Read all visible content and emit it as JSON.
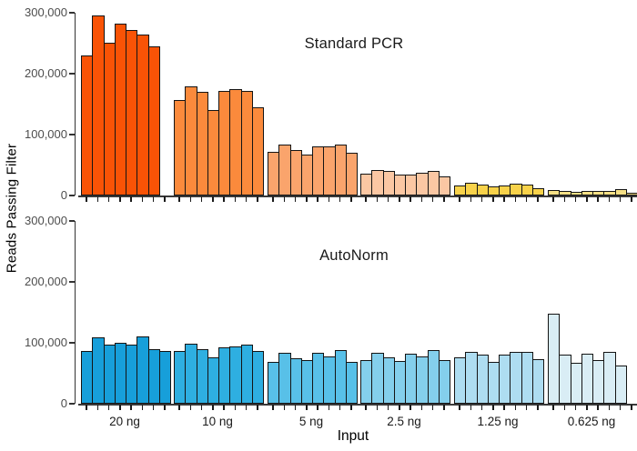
{
  "figure": {
    "background": "#ffffff",
    "axis_color": "#333333",
    "tick_label_color": "#4d4d4d",
    "bar_border_color": "#141414"
  },
  "chart_data": {
    "type": "bar",
    "title": "",
    "xlabel": "Input",
    "ylabel": "Reads Passing Filter",
    "ylim": [
      0,
      300000
    ],
    "yticks": [
      0,
      100000,
      200000,
      300000
    ],
    "ytick_labels": [
      "0",
      "100,000",
      "200,000",
      "300,000"
    ],
    "categories": [
      "20 ng",
      "10 ng",
      "5 ng",
      "2.5 ng",
      "1.25 ng",
      "0.625 ng"
    ],
    "slots_per_group": 8,
    "legend": "none",
    "grid": "off",
    "panels": [
      {
        "label": "Standard PCR",
        "groups": [
          {
            "input": "20 ng",
            "color": "#f95306",
            "values": [
              230000,
              295000,
              250000,
              282000,
              271000,
              264000,
              245000,
              null
            ]
          },
          {
            "input": "10 ng",
            "color": "#fb8a3c",
            "values": [
              157000,
              179000,
              170000,
              140000,
              171000,
              175000,
              172000,
              145000
            ]
          },
          {
            "input": "5 ng",
            "color": "#faa46c",
            "values": [
              71000,
              84000,
              75000,
              67000,
              81000,
              80000,
              83000,
              70000
            ]
          },
          {
            "input": "2.5 ng",
            "color": "#fbc7a3",
            "values": [
              36000,
              42000,
              40000,
              34000,
              35000,
              37000,
              41000,
              32000
            ]
          },
          {
            "input": "1.25 ng",
            "color": "#f8d24a",
            "values": [
              16000,
              21000,
              18000,
              15000,
              16000,
              20000,
              18000,
              12000
            ]
          },
          {
            "input": "0.625 ng",
            "color": "#f5df85",
            "values": [
              9000,
              8000,
              6000,
              7000,
              7000,
              7000,
              10000,
              5000
            ]
          }
        ]
      },
      {
        "label": "AutoNorm",
        "groups": [
          {
            "input": "20 ng",
            "color": "#179fda",
            "values": [
              86000,
              109000,
              97000,
              100000,
              97000,
              111000,
              90000,
              87000
            ]
          },
          {
            "input": "10 ng",
            "color": "#2eafe1",
            "values": [
              86000,
              98000,
              90000,
              76000,
              93000,
              94000,
              97000,
              87000
            ]
          },
          {
            "input": "5 ng",
            "color": "#58c0e8",
            "values": [
              69000,
              83000,
              75000,
              71000,
              83000,
              77000,
              88000,
              69000
            ]
          },
          {
            "input": "2.5 ng",
            "color": "#84cfec",
            "values": [
              71000,
              84000,
              76000,
              70000,
              82000,
              77000,
              88000,
              72000
            ]
          },
          {
            "input": "1.25 ng",
            "color": "#aeddf1",
            "values": [
              76000,
              85000,
              80000,
              68000,
              81000,
              85000,
              85000,
              73000
            ]
          },
          {
            "input": "0.625 ng",
            "color": "#d9edf5",
            "values": [
              148000,
              81000,
              67000,
              82000,
              71000,
              85000,
              62000,
              null
            ]
          }
        ]
      }
    ]
  }
}
